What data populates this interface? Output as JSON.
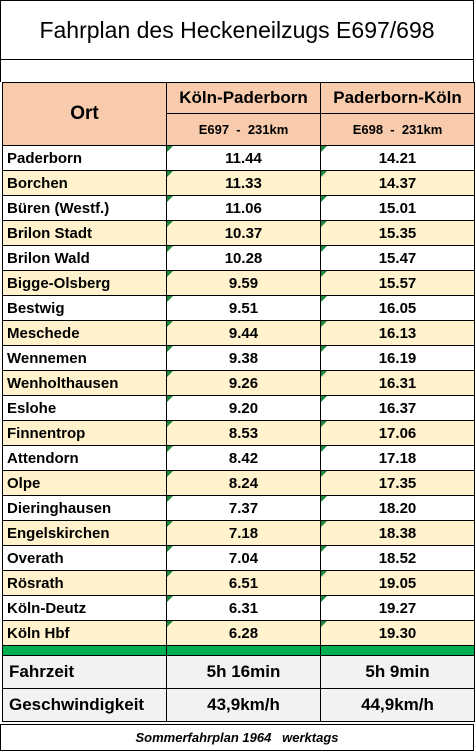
{
  "title": "Fahrplan des Heckeneilzugs E697/698",
  "header": {
    "place": "Ort",
    "dir1": "Köln-Paderborn",
    "dir1_sub": "E697  -  231km",
    "dir2": "Paderborn-Köln",
    "dir2_sub": "E698  -  231km"
  },
  "stops": [
    {
      "place": "Paderborn",
      "t1": "11.44",
      "t2": "14.21"
    },
    {
      "place": "Borchen",
      "t1": "11.33",
      "t2": "14.37"
    },
    {
      "place": "Büren (Westf.)",
      "t1": "11.06",
      "t2": "15.01"
    },
    {
      "place": "Brilon Stadt",
      "t1": "10.37",
      "t2": "15.35"
    },
    {
      "place": "Brilon Wald",
      "t1": "10.28",
      "t2": "15.47"
    },
    {
      "place": "Bigge-Olsberg",
      "t1": "9.59",
      "t2": "15.57"
    },
    {
      "place": "Bestwig",
      "t1": "9.51",
      "t2": "16.05"
    },
    {
      "place": "Meschede",
      "t1": "9.44",
      "t2": "16.13"
    },
    {
      "place": "Wennemen",
      "t1": "9.38",
      "t2": "16.19"
    },
    {
      "place": "Wenholthausen",
      "t1": "9.26",
      "t2": "16.31"
    },
    {
      "place": "Eslohe",
      "t1": "9.20",
      "t2": "16.37"
    },
    {
      "place": "Finnentrop",
      "t1": "8.53",
      "t2": "17.06"
    },
    {
      "place": "Attendorn",
      "t1": "8.42",
      "t2": "17.18"
    },
    {
      "place": "Olpe",
      "t1": "8.24",
      "t2": "17.35"
    },
    {
      "place": "Dieringhausen",
      "t1": "7.37",
      "t2": "18.20"
    },
    {
      "place": "Engelskirchen",
      "t1": "7.18",
      "t2": "18.38"
    },
    {
      "place": "Overath",
      "t1": "7.04",
      "t2": "18.52"
    },
    {
      "place": "Rösrath",
      "t1": "6.51",
      "t2": "19.05"
    },
    {
      "place": "Köln-Deutz",
      "t1": "6.31",
      "t2": "19.27"
    },
    {
      "place": "Köln Hbf",
      "t1": "6.28",
      "t2": "19.30"
    }
  ],
  "summary": {
    "duration_label": "Fahrzeit",
    "duration1": "5h 16min",
    "duration2": "5h 9min",
    "speed_label": "Geschwindigkeit",
    "speed1": "43,9km/h",
    "speed2": "44,9km/h"
  },
  "footer": "Sommerfahrplan 1964   werktags",
  "colors": {
    "header_bg": "#f8cbad",
    "alt_row_bg": "#fff2cc",
    "divider": "#00b050",
    "summary_bg": "#f2f2f2"
  }
}
